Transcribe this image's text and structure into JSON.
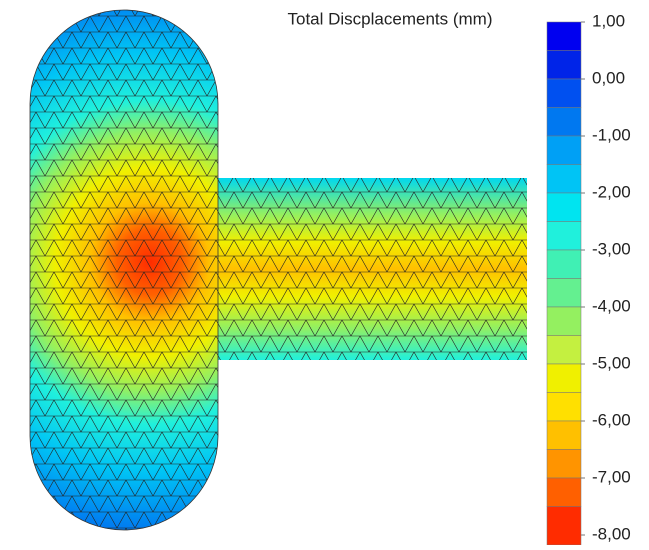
{
  "title": "Total Discplacements (mm)",
  "colorbar": {
    "lim": [
      1,
      -8
    ],
    "ticks": [
      {
        "value": 1,
        "label": "1,00"
      },
      {
        "value": 0,
        "label": "0,00"
      },
      {
        "value": -1,
        "label": "-1,00"
      },
      {
        "value": -2,
        "label": "-2,00"
      },
      {
        "value": -3,
        "label": "-3,00"
      },
      {
        "value": -4,
        "label": "-4,00"
      },
      {
        "value": -5,
        "label": "-5,00"
      },
      {
        "value": -6,
        "label": "-6,00"
      },
      {
        "value": -7,
        "label": "-7,00"
      },
      {
        "value": -8,
        "label": "-8,00"
      }
    ],
    "colors": [
      "#0000f0",
      "#0024e8",
      "#0050f0",
      "#0078f0",
      "#00a0f5",
      "#00c4f5",
      "#00e4f0",
      "#20f0dc",
      "#40f0b4",
      "#64f090",
      "#94f060",
      "#c4f040",
      "#f0f000",
      "#ffe000",
      "#ffc000",
      "#ff9400",
      "#ff6000",
      "#ff2c00"
    ]
  }
}
